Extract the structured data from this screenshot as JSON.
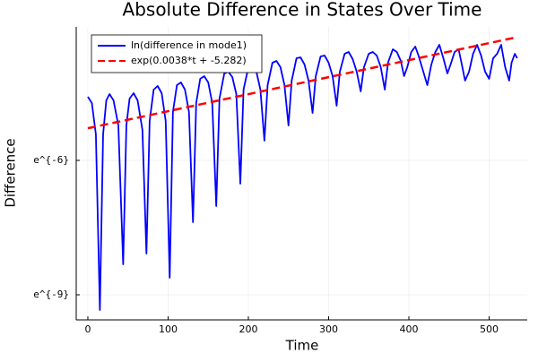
{
  "chart_data": {
    "type": "line",
    "title": "Absolute Difference in States Over Time",
    "x_label": "Time",
    "y_label": "Difference",
    "xlim": [
      -14.5,
      547.5
    ],
    "xticks": [
      0,
      100,
      200,
      300,
      400,
      500
    ],
    "ylim": [
      -9.56,
      -3.02
    ],
    "yticks": [
      {
        "value": -9,
        "label": "e^{-9}"
      },
      {
        "value": -6,
        "label": "e^{-6}"
      }
    ],
    "grid": true,
    "legend": "top-left",
    "series": [
      {
        "name": "ln(difference in mode1)",
        "color": "#0000ff",
        "line_style": "solid",
        "x": [
          0,
          5,
          10,
          15,
          19,
          23,
          27,
          32,
          38,
          44,
          48,
          52,
          57,
          62,
          68,
          73,
          77,
          82,
          87,
          92,
          97,
          102,
          106,
          111,
          116,
          121,
          126,
          131,
          135,
          140,
          145,
          150,
          155,
          160,
          164,
          170,
          175,
          180,
          185,
          190,
          194,
          200,
          205,
          210,
          215,
          220,
          224,
          230,
          235,
          240,
          245,
          250,
          254,
          260,
          265,
          270,
          275,
          280,
          284,
          290,
          295,
          300,
          305,
          310,
          314,
          320,
          325,
          330,
          335,
          340,
          344,
          350,
          355,
          360,
          365,
          370,
          374,
          380,
          385,
          390,
          394,
          398,
          403,
          408,
          412,
          418,
          423,
          428,
          433,
          438,
          443,
          448,
          452,
          457,
          462,
          466,
          470,
          475,
          480,
          485,
          490,
          495,
          500,
          505,
          510,
          515,
          520,
          525,
          528,
          532,
          535
        ],
        "values": [
          -4.58,
          -4.72,
          -5.42,
          -9.34,
          -5.42,
          -4.66,
          -4.52,
          -4.66,
          -5.22,
          -8.32,
          -5.22,
          -4.62,
          -4.5,
          -4.66,
          -5.32,
          -8.08,
          -5.12,
          -4.42,
          -4.34,
          -4.5,
          -5.12,
          -8.62,
          -4.92,
          -4.32,
          -4.26,
          -4.42,
          -4.92,
          -7.38,
          -4.72,
          -4.18,
          -4.12,
          -4.26,
          -4.72,
          -7.02,
          -4.62,
          -4.06,
          -4.02,
          -4.14,
          -4.52,
          -6.52,
          -4.42,
          -3.92,
          -3.88,
          -4.02,
          -4.42,
          -5.56,
          -4.32,
          -3.82,
          -3.78,
          -3.92,
          -4.32,
          -5.22,
          -4.22,
          -3.72,
          -3.7,
          -3.86,
          -4.22,
          -4.94,
          -4.12,
          -3.68,
          -3.66,
          -3.82,
          -4.12,
          -4.78,
          -4.02,
          -3.62,
          -3.58,
          -3.74,
          -4.02,
          -4.46,
          -3.92,
          -3.62,
          -3.58,
          -3.66,
          -3.92,
          -4.42,
          -3.82,
          -3.52,
          -3.58,
          -3.78,
          -4.12,
          -3.92,
          -3.58,
          -3.46,
          -3.66,
          -4.02,
          -4.32,
          -3.86,
          -3.58,
          -3.42,
          -3.72,
          -4.06,
          -3.86,
          -3.58,
          -3.52,
          -3.86,
          -4.22,
          -4.02,
          -3.62,
          -3.42,
          -3.66,
          -4.02,
          -4.18,
          -3.72,
          -3.62,
          -3.42,
          -3.92,
          -4.22,
          -3.82,
          -3.62,
          -3.72
        ]
      },
      {
        "name": "exp(0.0038*t + -5.282)",
        "color": "#ff0000",
        "line_style": "dashed",
        "x": [
          0,
          535
        ],
        "values": [
          -5.282,
          -3.249
        ]
      }
    ]
  }
}
